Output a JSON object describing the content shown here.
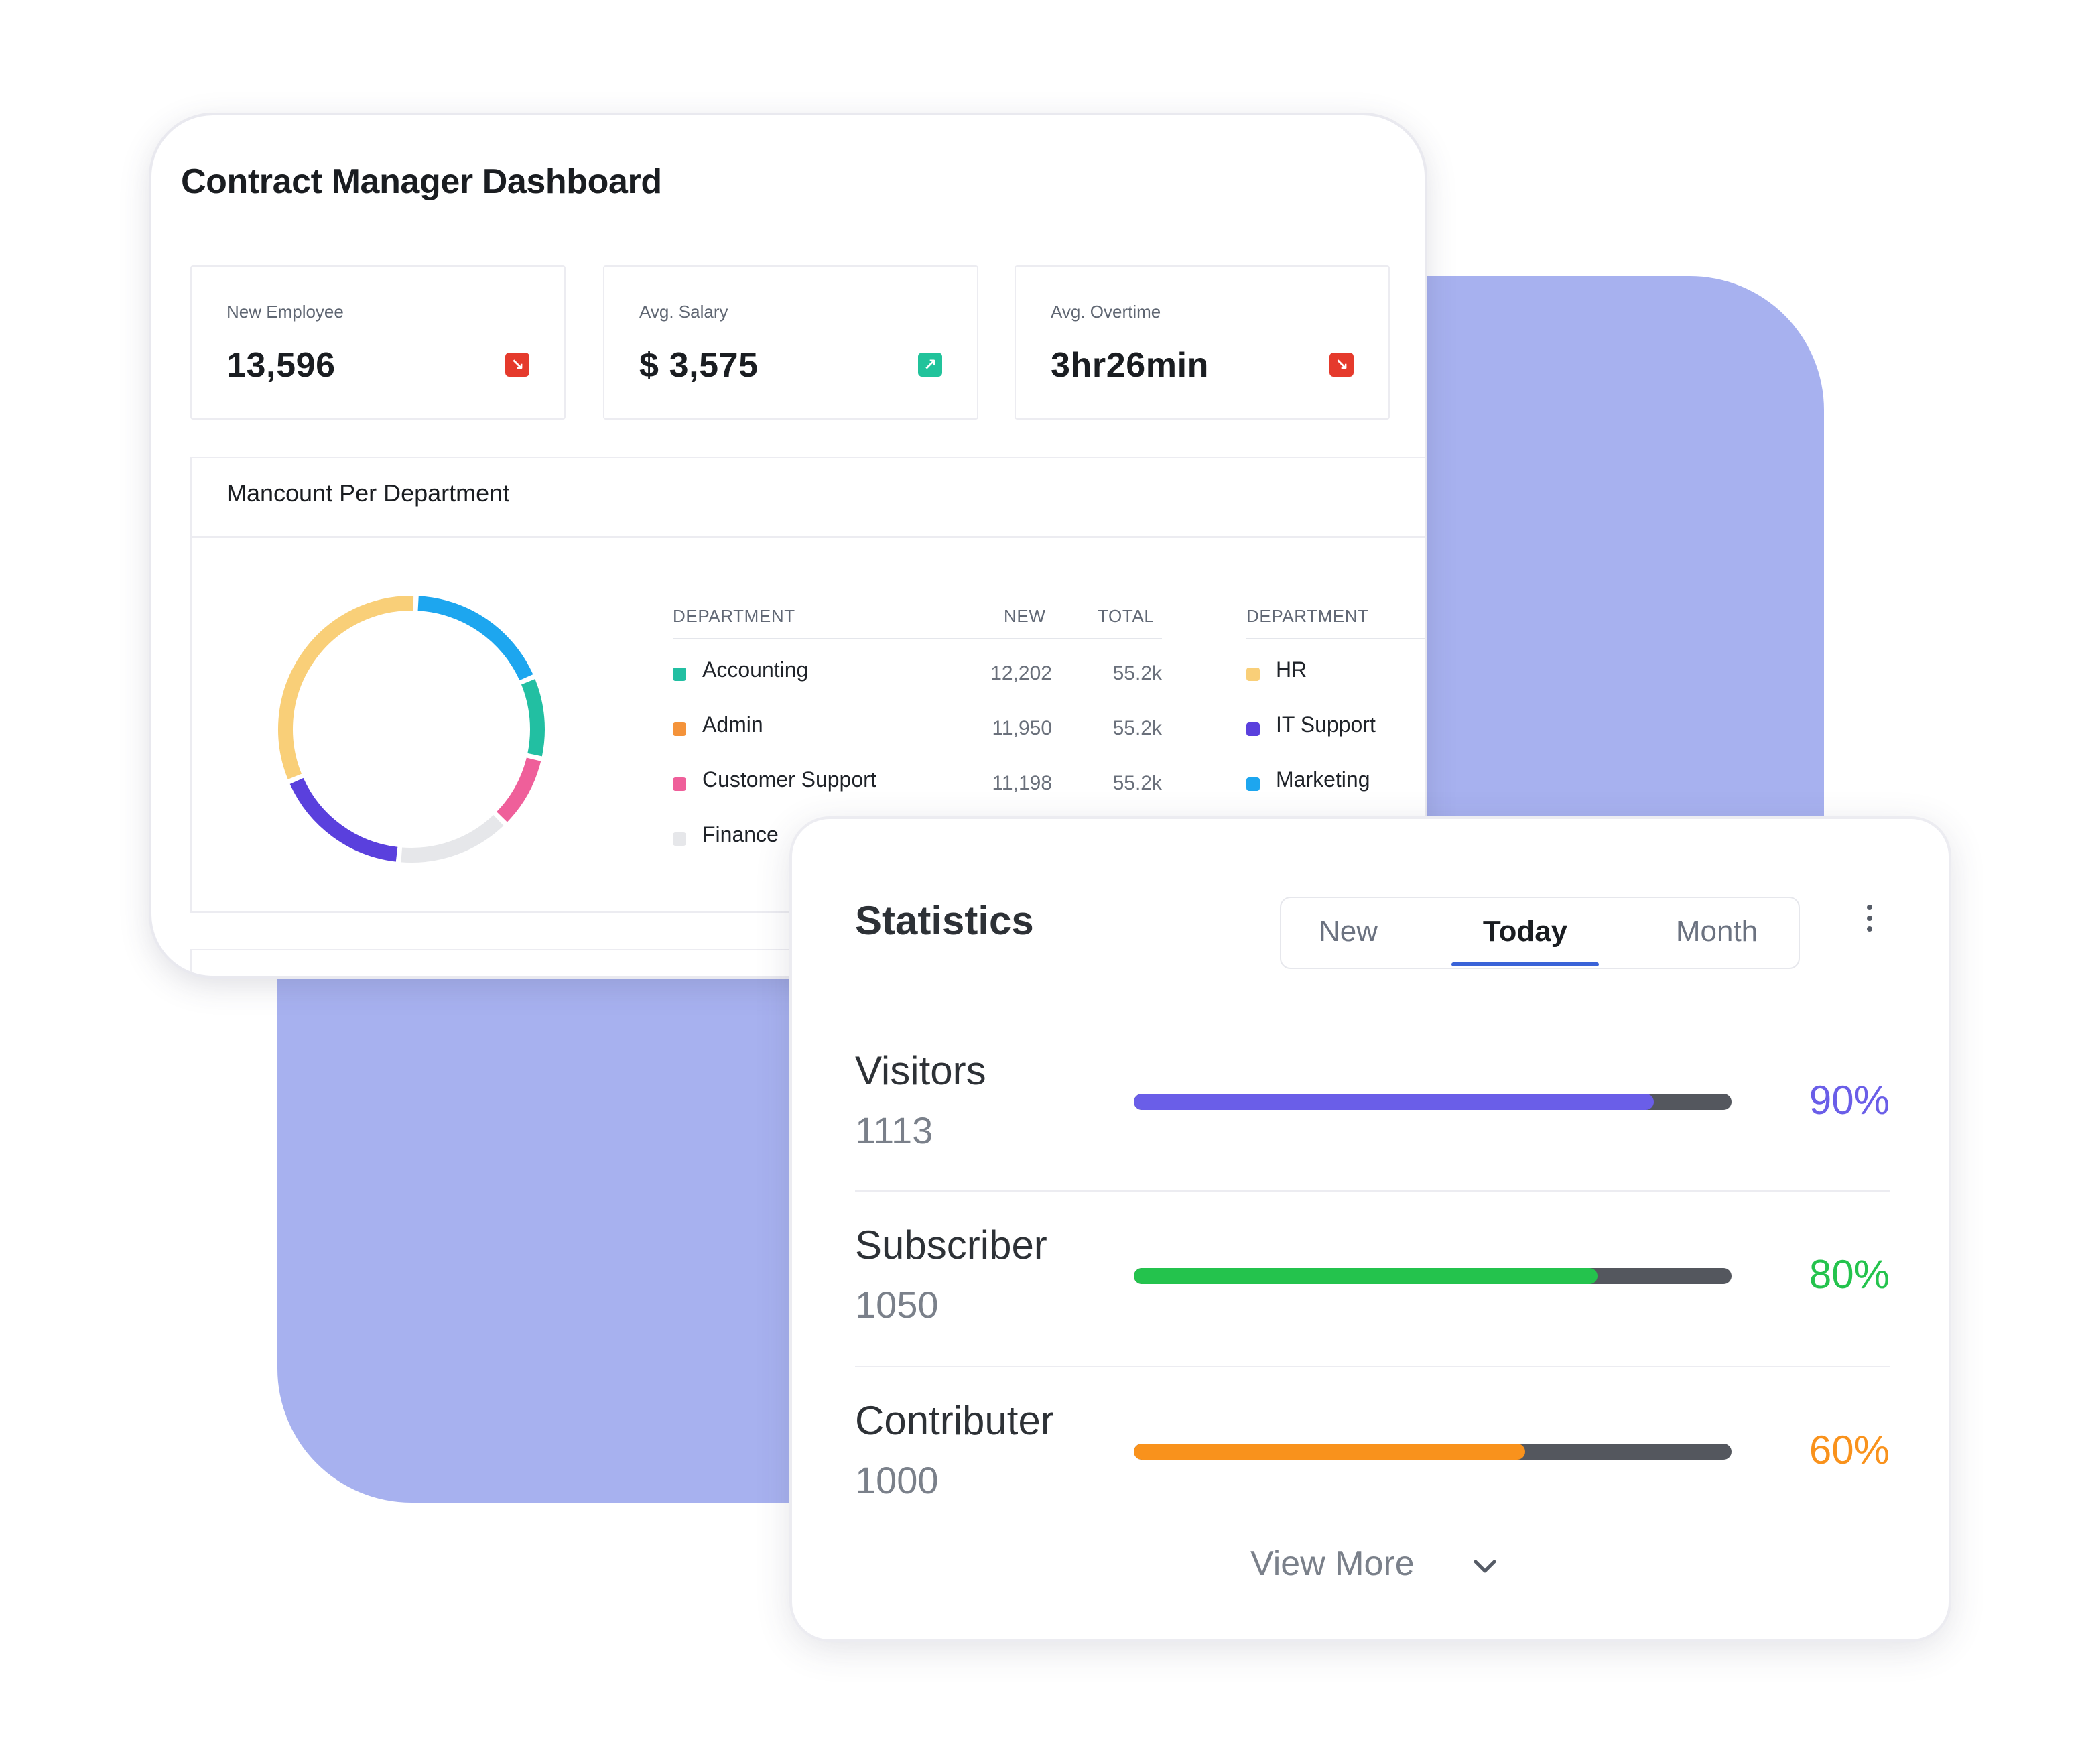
{
  "dashboard": {
    "title": "Contract Manager Dashboard",
    "kpis": [
      {
        "label": "New Employee",
        "value": "13,596",
        "trend": "down",
        "trend_icon": "↘",
        "trend_color": "#e53a2c"
      },
      {
        "label": "Avg. Salary",
        "value": "$ 3,575",
        "trend": "up",
        "trend_icon": "↗",
        "trend_color": "#21c39b"
      },
      {
        "label": "Avg. Overtime",
        "value": "3hr26min",
        "trend": "down",
        "trend_icon": "↘",
        "trend_color": "#e53a2c"
      }
    ],
    "department_panel": {
      "title": "Mancount Per Department",
      "headers": {
        "department": "DEPARTMENT",
        "new": "NEW",
        "total": "TOTAL",
        "department2": "DEPARTMENT"
      },
      "rows": [
        {
          "name": "Accounting",
          "color": "#22bfa2",
          "new": "12,202",
          "total": "55.2k"
        },
        {
          "name": "Admin",
          "color": "#f4933a",
          "new": "11,950",
          "total": "55.2k"
        },
        {
          "name": "Customer Support",
          "color": "#ef5f9a",
          "new": "11,198",
          "total": "55.2k"
        },
        {
          "name": "Finance",
          "color": "#e6e7ea"
        }
      ],
      "rows_right": [
        {
          "name": "HR",
          "color": "#f9cf78"
        },
        {
          "name": "IT Support",
          "color": "#5a40dd"
        },
        {
          "name": "Marketing",
          "color": "#1da6ef"
        }
      ]
    }
  },
  "chart_data": {
    "type": "pie",
    "categories": [
      "Marketing",
      "Accounting",
      "Customer Support",
      "Finance",
      "IT Support",
      "HR"
    ],
    "values": [
      18,
      10,
      9,
      14,
      17,
      32
    ],
    "colors": [
      "#1da6ef",
      "#22bfa2",
      "#ef5f9a",
      "#e6e7ea",
      "#5a40dd",
      "#f9cf78"
    ]
  },
  "statistics": {
    "title": "Statistics",
    "tabs": [
      {
        "label": "New",
        "active": false
      },
      {
        "label": "Today",
        "active": true
      },
      {
        "label": "Month",
        "active": false
      }
    ],
    "menu_icon": "more-vertical-icon",
    "items": [
      {
        "name": "Visitors",
        "count": "1113",
        "percent_label": "90%",
        "percent": 0.87,
        "color": "#6a5ee8"
      },
      {
        "name": "Subscriber",
        "count": "1050",
        "percent_label": "80%",
        "percent": 0.775,
        "color": "#24c34d"
      },
      {
        "name": "Contributer",
        "count": "1000",
        "percent_label": "60%",
        "percent": 0.655,
        "color": "#f9921c"
      }
    ],
    "view_more": "View More",
    "view_more_icon": "chevron-down-icon"
  }
}
